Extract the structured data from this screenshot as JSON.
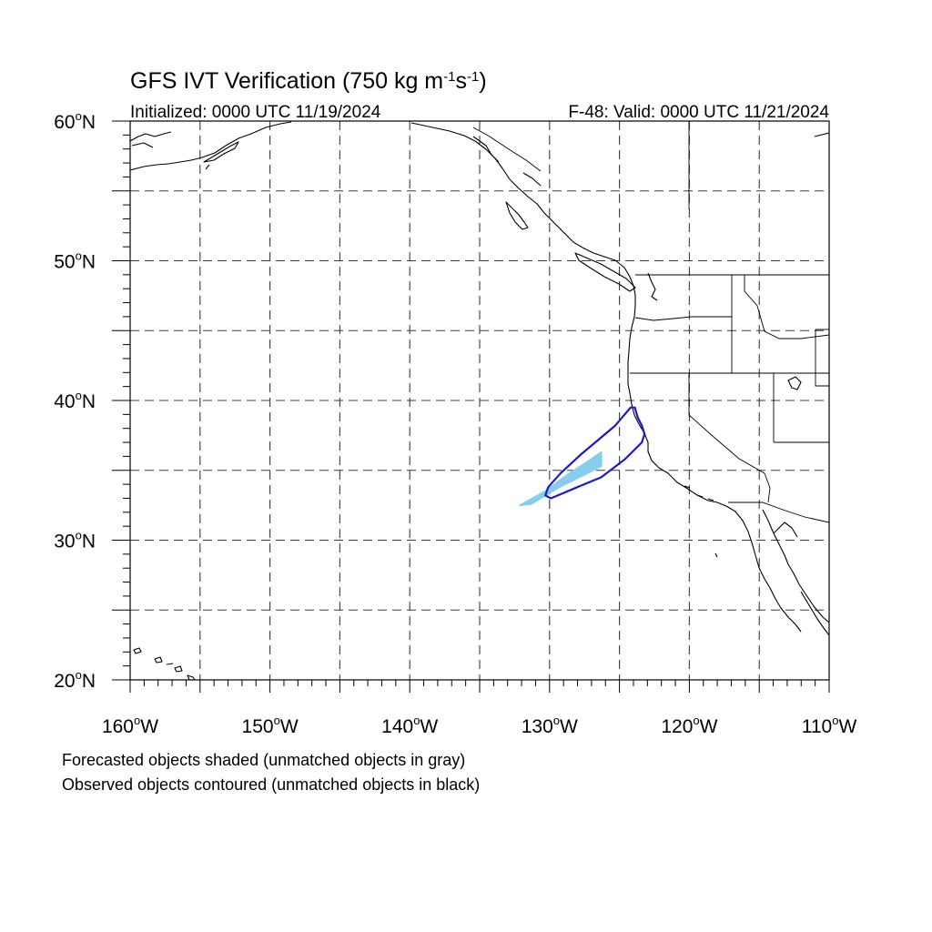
{
  "title": {
    "main_prefix": "GFS IVT Verification (750 kg m",
    "sup1": "-1",
    "mid": "s",
    "sup2": "-1",
    "suffix": ")"
  },
  "subtitle_left": "Initialized: 0000 UTC 11/19/2024",
  "subtitle_right": "F-48: Valid: 0000 UTC 11/21/2024",
  "map": {
    "lon_range": [
      -160,
      -110
    ],
    "lat_range": [
      20,
      60
    ],
    "lon_ticks": [
      -160,
      -150,
      -140,
      -130,
      -120,
      -110
    ],
    "lon_tick_labels": [
      "160W",
      "150W",
      "140W",
      "130W",
      "120W",
      "110W"
    ],
    "lat_ticks": [
      20,
      30,
      40,
      50,
      60
    ],
    "lat_tick_labels": [
      "20N",
      "30N",
      "40N",
      "50N",
      "60N"
    ],
    "grid_lons": [
      -155,
      -150,
      -145,
      -140,
      -135,
      -130,
      -125,
      -120,
      -115
    ],
    "grid_lats": [
      25,
      30,
      35,
      40,
      45,
      50,
      55
    ],
    "grid": true,
    "colors": {
      "forecast_fill": "#87CEEB",
      "observed_contour": "#1a1acd",
      "coastline": "#000000"
    },
    "forecast_object": [
      [
        -132.1,
        32.5
      ],
      [
        -130.3,
        33.5
      ],
      [
        -128.7,
        34.7
      ],
      [
        -127.3,
        35.6
      ],
      [
        -126.3,
        36.3
      ],
      [
        -126.3,
        35.3
      ],
      [
        -127.3,
        34.8
      ],
      [
        -129.3,
        33.8
      ],
      [
        -131.3,
        32.6
      ]
    ],
    "observed_object": [
      [
        -129.9,
        33.0
      ],
      [
        -128.0,
        33.8
      ],
      [
        -126.3,
        34.5
      ],
      [
        -124.6,
        35.8
      ],
      [
        -123.4,
        37.0
      ],
      [
        -123.2,
        37.6
      ],
      [
        -123.4,
        38.2
      ],
      [
        -123.7,
        38.8
      ],
      [
        -123.9,
        39.5
      ],
      [
        -124.2,
        39.5
      ],
      [
        -125.3,
        38.2
      ],
      [
        -127.8,
        36.1
      ],
      [
        -129.2,
        34.8
      ],
      [
        -130.1,
        33.8
      ],
      [
        -130.3,
        33.2
      ]
    ]
  },
  "footnotes": [
    "Forecasted objects shaded (unmatched objects in gray)",
    "Observed objects contoured (unmatched objects in black)"
  ]
}
